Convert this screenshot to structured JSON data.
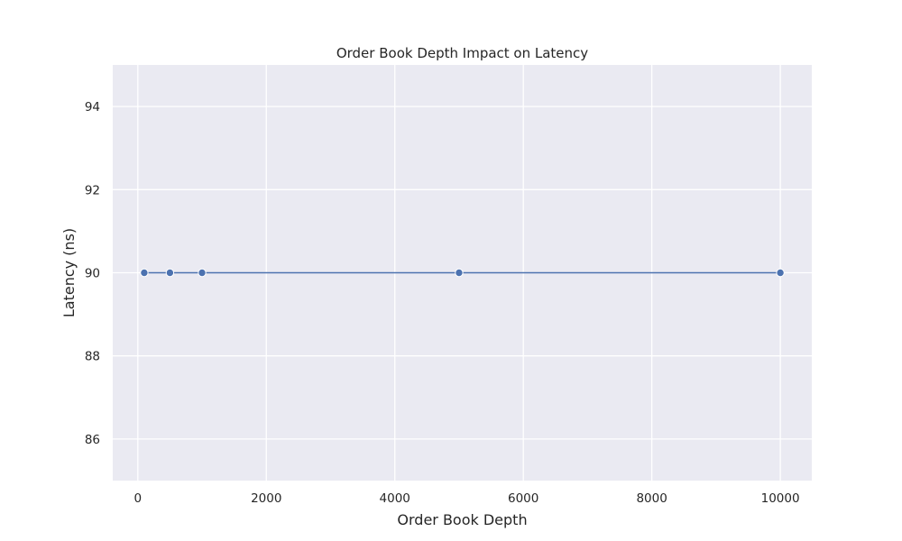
{
  "chart_data": {
    "type": "line",
    "title": "Order Book Depth Impact on Latency",
    "xlabel": "Order Book Depth",
    "ylabel": "Latency (ns)",
    "xlim": [
      -390,
      10490
    ],
    "ylim": [
      85.0,
      95.0
    ],
    "xticks": [
      0,
      2000,
      4000,
      6000,
      8000,
      10000
    ],
    "yticks": [
      86,
      88,
      90,
      92,
      94
    ],
    "grid": true,
    "series": [
      {
        "color": "#4c72b0",
        "marker": "circle",
        "points": [
          {
            "x": 100,
            "y": 90
          },
          {
            "x": 500,
            "y": 90
          },
          {
            "x": 1000,
            "y": 90
          },
          {
            "x": 5000,
            "y": 90
          },
          {
            "x": 10000,
            "y": 90
          }
        ]
      }
    ]
  }
}
